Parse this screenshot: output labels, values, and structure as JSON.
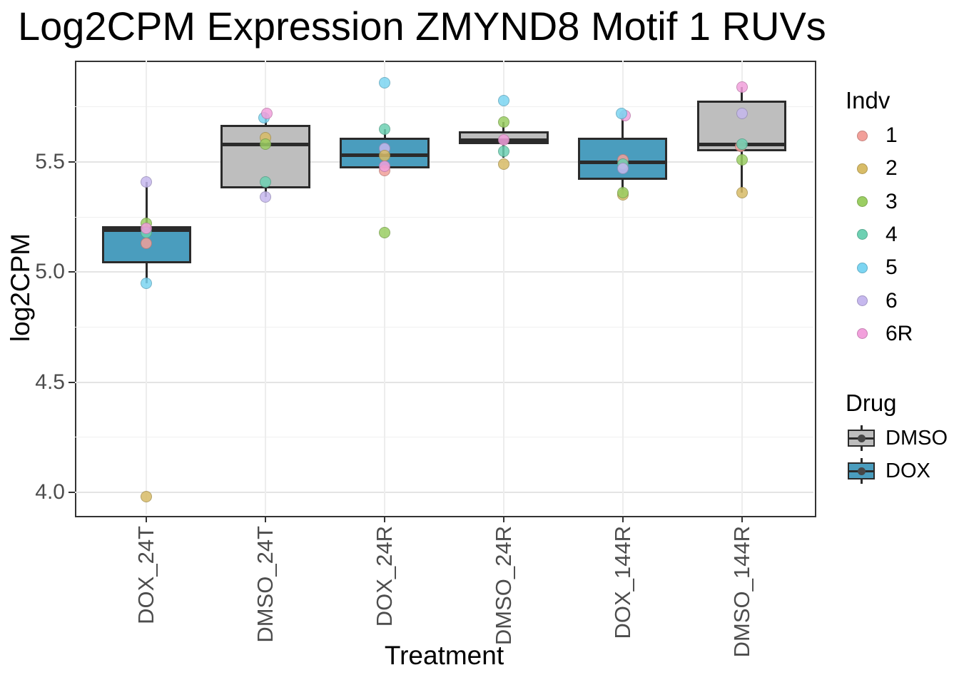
{
  "chart_data": {
    "type": "box",
    "title": "Log2CPM Expression ZMYND8 Motif 1 RUVs",
    "xlabel": "Treatment",
    "ylabel": "log2CPM",
    "ylim": [
      3.9,
      5.96
    ],
    "grid": true,
    "legend_position": "right",
    "y_ticks": [
      {
        "value": 5.5,
        "label": "5.5"
      },
      {
        "value": 5.0,
        "label": "5.0"
      },
      {
        "value": 4.5,
        "label": "4.5"
      },
      {
        "value": 4.0,
        "label": "4.0"
      }
    ],
    "y_minor_gridlines": [
      5.75,
      5.25,
      4.75,
      4.25
    ],
    "categories": [
      "DOX_24T",
      "DMSO_24T",
      "DOX_24R",
      "DMSO_24R",
      "DOX_144R",
      "DMSO_144R"
    ],
    "drug_colors": {
      "DMSO": "#BEBEBE",
      "DOX": "#4A9DBE"
    },
    "indv_colors": {
      "1": "#F2A09A",
      "2": "#D8BC67",
      "3": "#9BCE63",
      "4": "#6ED1B3",
      "5": "#7CD5F2",
      "6": "#C6B8EE",
      "6R": "#F2A0DC"
    },
    "legends": {
      "indv": {
        "title": "Indv",
        "entries": [
          "1",
          "2",
          "3",
          "4",
          "5",
          "6",
          "6R"
        ]
      },
      "drug": {
        "title": "Drug",
        "entries": [
          "DMSO",
          "DOX"
        ]
      }
    },
    "boxes": [
      {
        "category": "DOX_24T",
        "drug": "DOX",
        "q1": 5.04,
        "median": 5.19,
        "q3": 5.21,
        "whisker_low": 4.95,
        "whisker_high": 5.41,
        "points": [
          {
            "indv": "6",
            "value": 5.41
          },
          {
            "indv": "3",
            "value": 5.22
          },
          {
            "indv": "4",
            "value": 5.18
          },
          {
            "indv": "6R",
            "value": 5.2
          },
          {
            "indv": "1",
            "value": 5.13
          },
          {
            "indv": "5",
            "value": 4.95
          },
          {
            "indv": "2",
            "value": 3.98
          }
        ]
      },
      {
        "category": "DMSO_24T",
        "drug": "DMSO",
        "q1": 5.38,
        "median": 5.58,
        "q3": 5.67,
        "whisker_low": 5.34,
        "whisker_high": 5.72,
        "points": [
          {
            "indv": "5",
            "value": 5.7,
            "dx": -2
          },
          {
            "indv": "6R",
            "value": 5.72,
            "dx": 2
          },
          {
            "indv": "2",
            "value": 5.61
          },
          {
            "indv": "3",
            "value": 5.58
          },
          {
            "indv": "4",
            "value": 5.41
          },
          {
            "indv": "6",
            "value": 5.34
          }
        ]
      },
      {
        "category": "DOX_24R",
        "drug": "DOX",
        "q1": 5.47,
        "median": 5.53,
        "q3": 5.61,
        "whisker_low": 5.47,
        "whisker_high": 5.65,
        "points": [
          {
            "indv": "5",
            "value": 5.86
          },
          {
            "indv": "4",
            "value": 5.65
          },
          {
            "indv": "6",
            "value": 5.56
          },
          {
            "indv": "2",
            "value": 5.53
          },
          {
            "indv": "1",
            "value": 5.46
          },
          {
            "indv": "6R",
            "value": 5.48
          },
          {
            "indv": "3",
            "value": 5.18
          }
        ]
      },
      {
        "category": "DMSO_24R",
        "drug": "DMSO",
        "q1": 5.58,
        "median": 5.6,
        "q3": 5.64,
        "whisker_low": 5.52,
        "whisker_high": 5.68,
        "points": [
          {
            "indv": "5",
            "value": 5.78
          },
          {
            "indv": "3",
            "value": 5.68
          },
          {
            "indv": "6R",
            "value": 5.6
          },
          {
            "indv": "4",
            "value": 5.55
          },
          {
            "indv": "2",
            "value": 5.49
          }
        ]
      },
      {
        "category": "DOX_144R",
        "drug": "DOX",
        "q1": 5.42,
        "median": 5.5,
        "q3": 5.61,
        "whisker_low": 5.35,
        "whisker_high": 5.72,
        "points": [
          {
            "indv": "6R",
            "value": 5.71,
            "dx": 3
          },
          {
            "indv": "5",
            "value": 5.72,
            "dx": -2
          },
          {
            "indv": "1",
            "value": 5.51
          },
          {
            "indv": "4",
            "value": 5.49
          },
          {
            "indv": "6",
            "value": 5.47
          },
          {
            "indv": "2",
            "value": 5.35
          },
          {
            "indv": "3",
            "value": 5.36
          }
        ]
      },
      {
        "category": "DMSO_144R",
        "drug": "DMSO",
        "q1": 5.55,
        "median": 5.58,
        "q3": 5.78,
        "whisker_low": 5.36,
        "whisker_high": 5.84,
        "points": [
          {
            "indv": "6R",
            "value": 5.84
          },
          {
            "indv": "6",
            "value": 5.72
          },
          {
            "indv": "1",
            "value": 5.57,
            "dx": -2
          },
          {
            "indv": "4",
            "value": 5.58
          },
          {
            "indv": "2",
            "value": 5.36
          },
          {
            "indv": "3",
            "value": 5.51
          }
        ]
      }
    ]
  }
}
